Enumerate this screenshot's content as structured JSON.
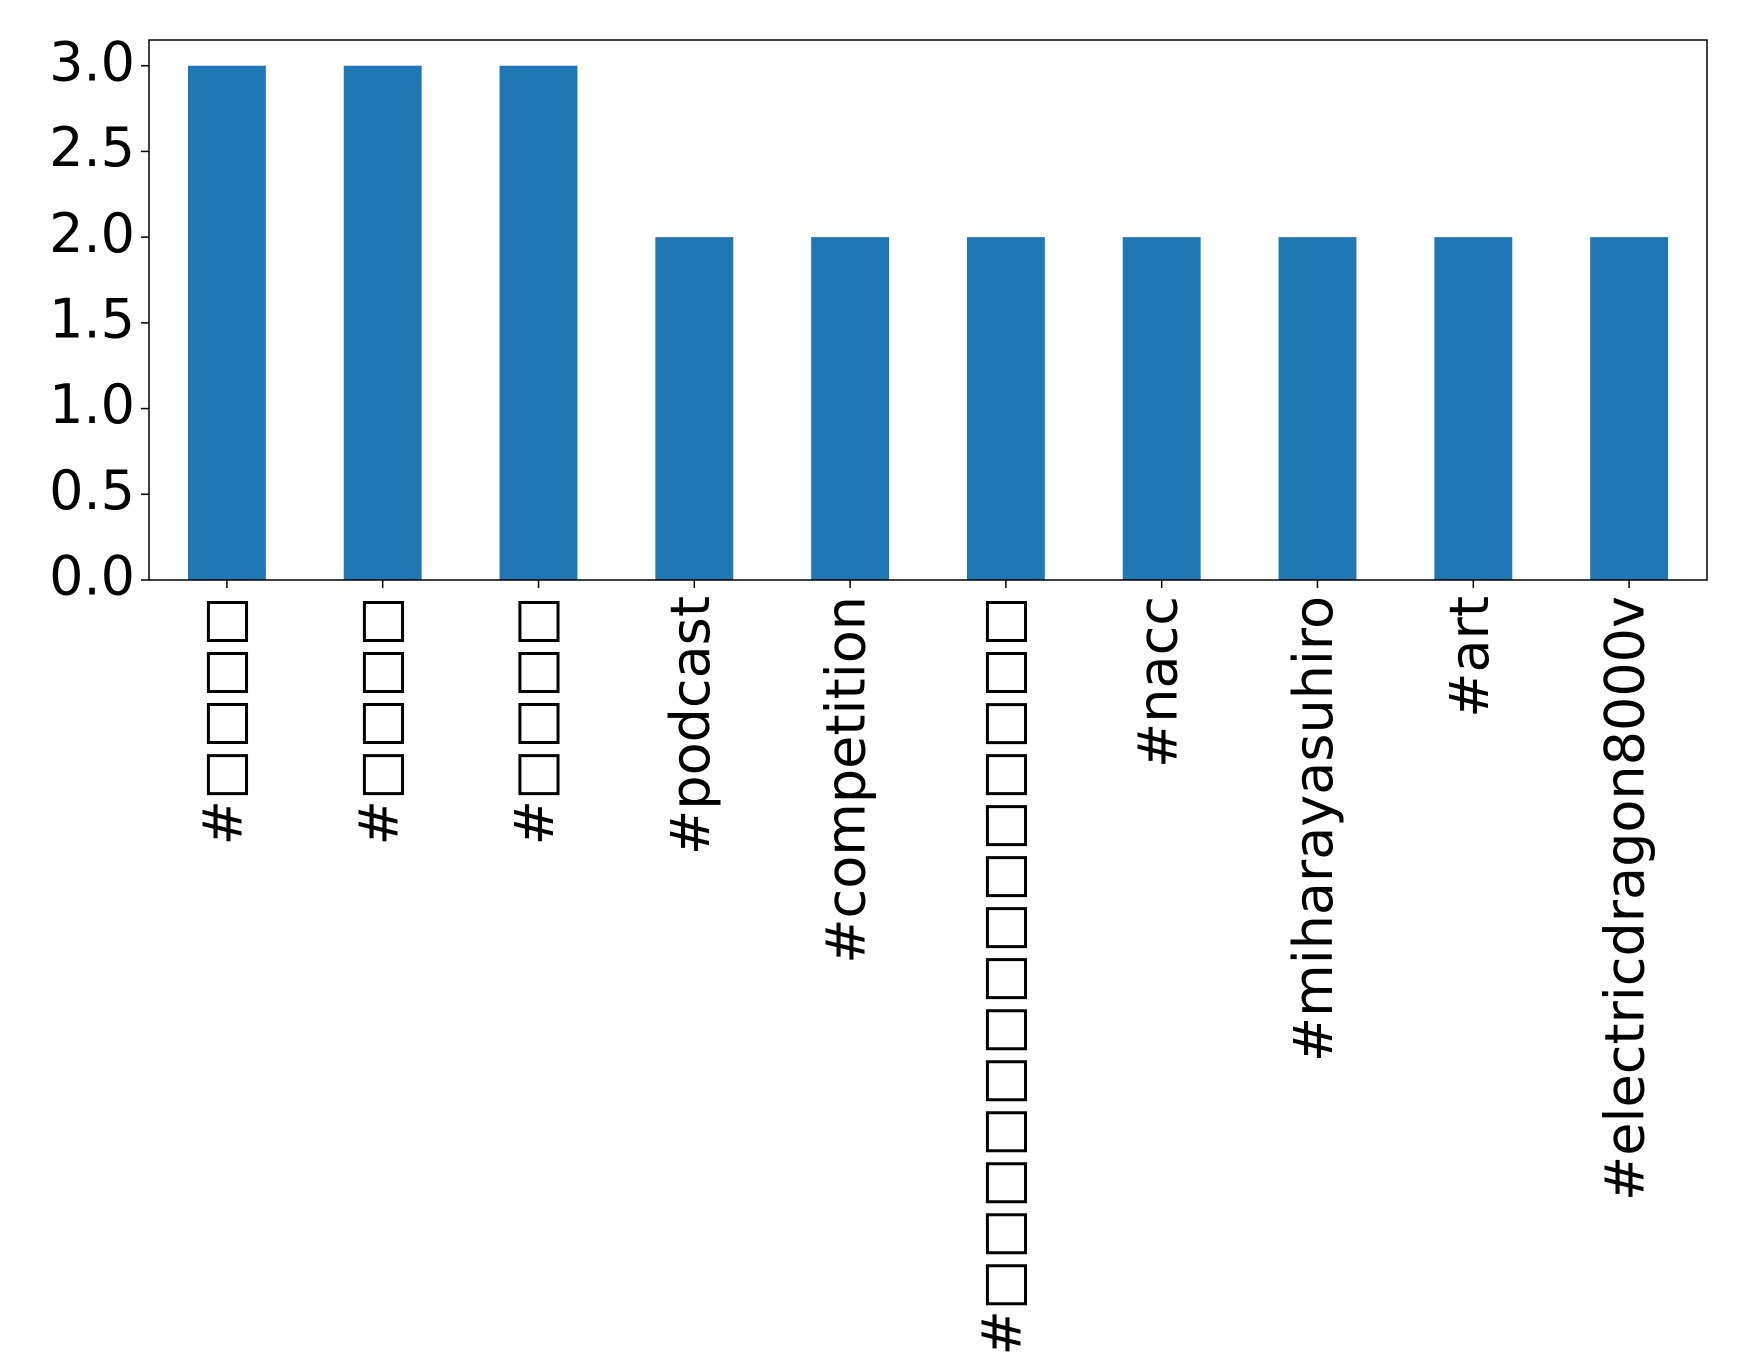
{
  "chart_data": {
    "type": "bar",
    "categories": [
      "#□□□□",
      "#□□□□",
      "#□□□□",
      "#podcast",
      "#competition",
      "#□□□□□□□□□□□□□□",
      "#nacc",
      "#miharayasuhiro",
      "#art",
      "#electricdragon8000v"
    ],
    "values": [
      3,
      3,
      3,
      2,
      2,
      2,
      2,
      2,
      2,
      2
    ],
    "color": "#1f77b4",
    "ylim": [
      0,
      3.15
    ],
    "yticks": [
      {
        "value": 0,
        "label": "0.0"
      },
      {
        "value": 0.5,
        "label": "0.5"
      },
      {
        "value": 1,
        "label": "1.0"
      },
      {
        "value": 1.5,
        "label": "1.5"
      },
      {
        "value": 2,
        "label": "2.0"
      },
      {
        "value": 2.5,
        "label": "2.5"
      },
      {
        "value": 3,
        "label": "3.0"
      }
    ],
    "grid": false
  }
}
